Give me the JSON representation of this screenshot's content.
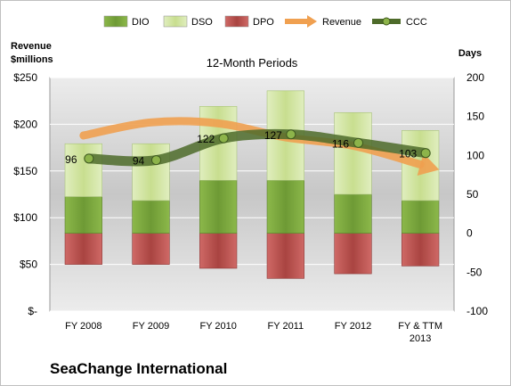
{
  "chart_data": {
    "type": "bar",
    "title": "12-Month Periods",
    "company": "SeaChange International",
    "categories": [
      [
        "FY 2008"
      ],
      [
        "FY 2009"
      ],
      [
        "FY 2010"
      ],
      [
        "FY 2011"
      ],
      [
        "FY 2012"
      ],
      [
        "FY & TTM",
        "2013"
      ]
    ],
    "left_axis": {
      "label": [
        "Revenue",
        "$millions"
      ],
      "min": 0,
      "max": 250,
      "step": 50,
      "ticks": [
        "$-",
        "$50",
        "$100",
        "$150",
        "$200",
        "$250"
      ]
    },
    "right_axis": {
      "label": "Days",
      "min": -100,
      "max": 200,
      "step": 50,
      "ticks": [
        "-100",
        "-50",
        "0",
        "50",
        "100",
        "150",
        "200"
      ]
    },
    "legend": {
      "position": "top",
      "items": [
        {
          "name": "DIO",
          "type": "bar",
          "color": "#7aa33e"
        },
        {
          "name": "DSO",
          "type": "bar",
          "color": "#d4e6a7"
        },
        {
          "name": "DPO",
          "type": "bar",
          "color": "#c0504d"
        },
        {
          "name": "Revenue",
          "type": "arrow",
          "color": "#f0a050"
        },
        {
          "name": "CCC",
          "type": "line",
          "color": "#4e6b2a"
        }
      ]
    },
    "series": [
      {
        "name": "DIO",
        "axis": "right",
        "values": [
          47,
          42,
          68,
          68,
          50,
          42
        ]
      },
      {
        "name": "DSO",
        "axis": "right",
        "values": [
          68,
          73,
          95,
          115,
          105,
          90
        ]
      },
      {
        "name": "DPO",
        "axis": "right",
        "values": [
          -40,
          -40,
          -45,
          -58,
          -52,
          -42
        ]
      },
      {
        "name": "CCC",
        "axis": "right",
        "values": [
          96,
          94,
          122,
          127,
          116,
          103
        ]
      },
      {
        "name": "Revenue",
        "axis": "left",
        "values": [
          188,
          202,
          201,
          186,
          177,
          157
        ]
      }
    ],
    "ccc_labels": [
      "96",
      "94",
      "122",
      "127",
      "116",
      "103"
    ],
    "grid": true
  }
}
